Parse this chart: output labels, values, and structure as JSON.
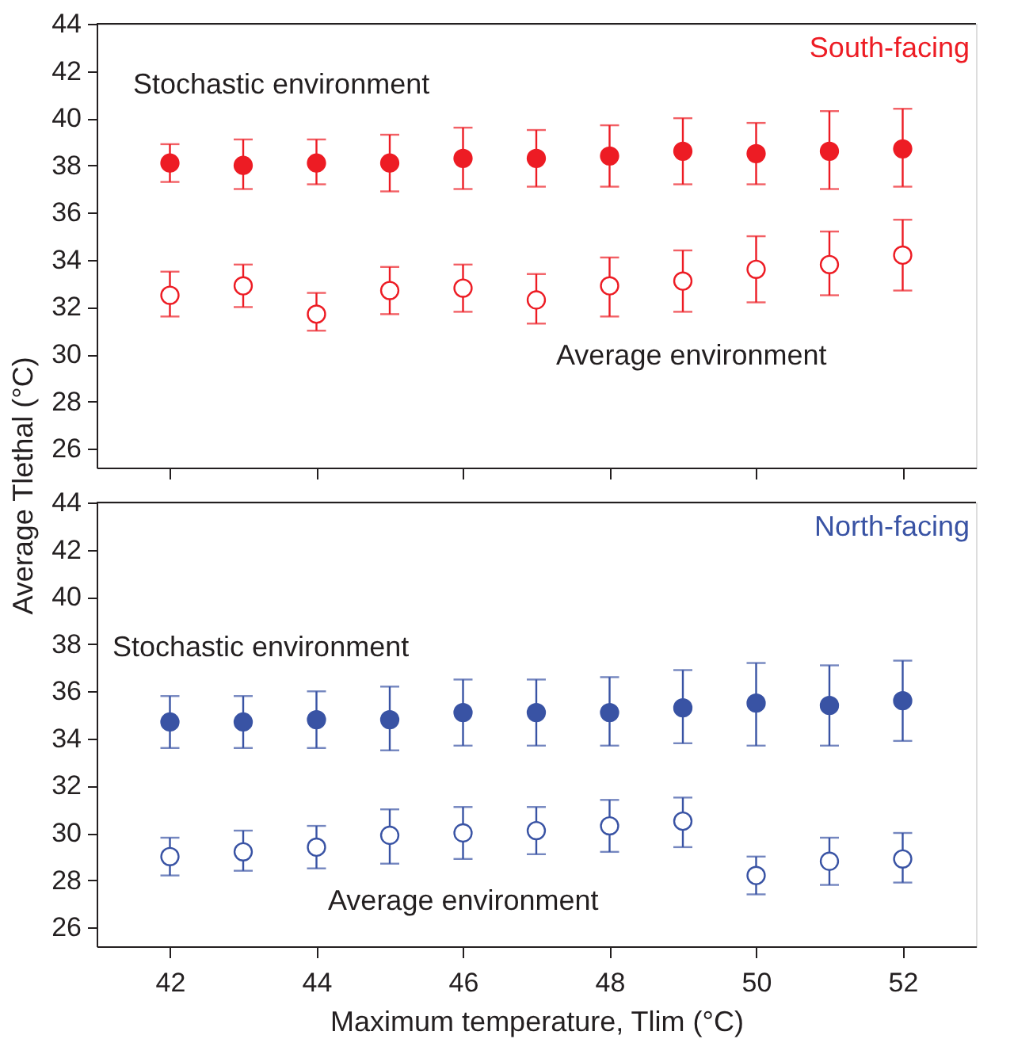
{
  "chart_data": [
    {
      "type": "scatter",
      "title": "South-facing",
      "ylabel": "Average Tlethal (°C)",
      "xlim": [
        41,
        53
      ],
      "xticks": [
        42,
        44,
        46,
        48,
        50,
        52
      ],
      "ylim": [
        25.2,
        44
      ],
      "yticks": [
        26,
        28,
        30,
        32,
        34,
        36,
        38,
        40,
        42,
        44
      ],
      "grid": false,
      "marker": "circle",
      "tick_labels": "y",
      "annotations": [
        "Stochastic environment",
        "Average environment"
      ],
      "x": [
        42,
        43,
        44,
        45,
        46,
        47,
        48,
        49,
        50,
        51,
        52
      ],
      "series": [
        {
          "color": "#ed1c24",
          "values": [
            38.1,
            38.0,
            38.1,
            38.1,
            38.3,
            38.3,
            38.4,
            38.6,
            38.5,
            38.6,
            38.7
          ],
          "errors": [
            [
              37.3,
              38.9
            ],
            [
              37.0,
              39.1
            ],
            [
              37.2,
              39.1
            ],
            [
              36.9,
              39.3
            ],
            [
              37.0,
              39.6
            ],
            [
              37.1,
              39.5
            ],
            [
              37.1,
              39.7
            ],
            [
              37.2,
              40.0
            ],
            [
              37.2,
              39.8
            ],
            [
              37.0,
              40.3
            ],
            [
              37.1,
              40.4
            ]
          ]
        },
        {
          "color": "#ed1c24",
          "values": [
            32.5,
            32.9,
            31.7,
            32.7,
            32.8,
            32.3,
            32.9,
            33.1,
            33.6,
            33.8,
            34.2
          ],
          "errors": [
            [
              31.6,
              33.5
            ],
            [
              32.0,
              33.8
            ],
            [
              31.0,
              32.6
            ],
            [
              31.7,
              33.7
            ],
            [
              31.8,
              33.8
            ],
            [
              31.3,
              33.4
            ],
            [
              31.6,
              34.1
            ],
            [
              31.8,
              34.4
            ],
            [
              32.2,
              35.0
            ],
            [
              32.5,
              35.2
            ],
            [
              32.7,
              35.7
            ]
          ]
        }
      ]
    },
    {
      "type": "scatter",
      "title": "North-facing",
      "xlabel": "Maximum temperature, Tlim (°C)",
      "xlim": [
        41,
        53
      ],
      "xticks": [
        42,
        44,
        46,
        48,
        50,
        52
      ],
      "ylim": [
        25.2,
        44
      ],
      "yticks": [
        26,
        28,
        30,
        32,
        34,
        36,
        38,
        40,
        42,
        44
      ],
      "grid": false,
      "marker": "circle",
      "annotations": [
        "Stochastic environment",
        "Average environment"
      ],
      "x": [
        42,
        43,
        44,
        45,
        46,
        47,
        48,
        49,
        50,
        51,
        52
      ],
      "series": [
        {
          "color": "#3953a4",
          "values": [
            34.7,
            34.7,
            34.8,
            34.8,
            35.1,
            35.1,
            35.1,
            35.3,
            35.5,
            35.4,
            35.6
          ],
          "errors": [
            [
              33.6,
              35.8
            ],
            [
              33.6,
              35.8
            ],
            [
              33.6,
              36.0
            ],
            [
              33.5,
              36.2
            ],
            [
              33.7,
              36.5
            ],
            [
              33.7,
              36.5
            ],
            [
              33.7,
              36.6
            ],
            [
              33.8,
              36.9
            ],
            [
              33.7,
              37.2
            ],
            [
              33.7,
              37.1
            ],
            [
              33.9,
              37.3
            ]
          ]
        },
        {
          "color": "#3953a4",
          "values": [
            29.0,
            29.2,
            29.4,
            29.9,
            30.0,
            30.1,
            30.3,
            30.5,
            28.2,
            28.8,
            28.9
          ],
          "errors": [
            [
              28.2,
              29.8
            ],
            [
              28.4,
              30.1
            ],
            [
              28.5,
              30.3
            ],
            [
              28.7,
              31.0
            ],
            [
              28.9,
              31.1
            ],
            [
              29.1,
              31.1
            ],
            [
              29.2,
              31.4
            ],
            [
              29.4,
              31.5
            ],
            [
              27.4,
              29.0
            ],
            [
              27.8,
              29.8
            ],
            [
              27.9,
              30.0
            ]
          ]
        }
      ]
    }
  ]
}
